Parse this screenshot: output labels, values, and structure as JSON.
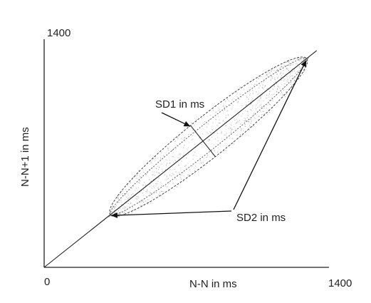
{
  "chart_data": {
    "type": "scatter",
    "title": "",
    "xlabel": "N-N in ms",
    "ylabel": "N-N+1 in ms",
    "xlim": [
      0,
      1400
    ],
    "ylim": [
      0,
      1400
    ],
    "tick_labels": {
      "origin": "0",
      "x_max": "1400",
      "y_max": "1400"
    },
    "identity_line": true,
    "grid": false,
    "ellipse": {
      "center": [
        820,
        820
      ],
      "end_low": [
        330,
        330
      ],
      "end_high": [
        1310,
        1310
      ]
    },
    "annotations": [
      {
        "text": "SD1 in ms"
      },
      {
        "text": "SD2 in ms"
      }
    ],
    "colors": {
      "axis": "#222222",
      "points": "#9a9a9a",
      "ellipse": "#444444"
    }
  }
}
